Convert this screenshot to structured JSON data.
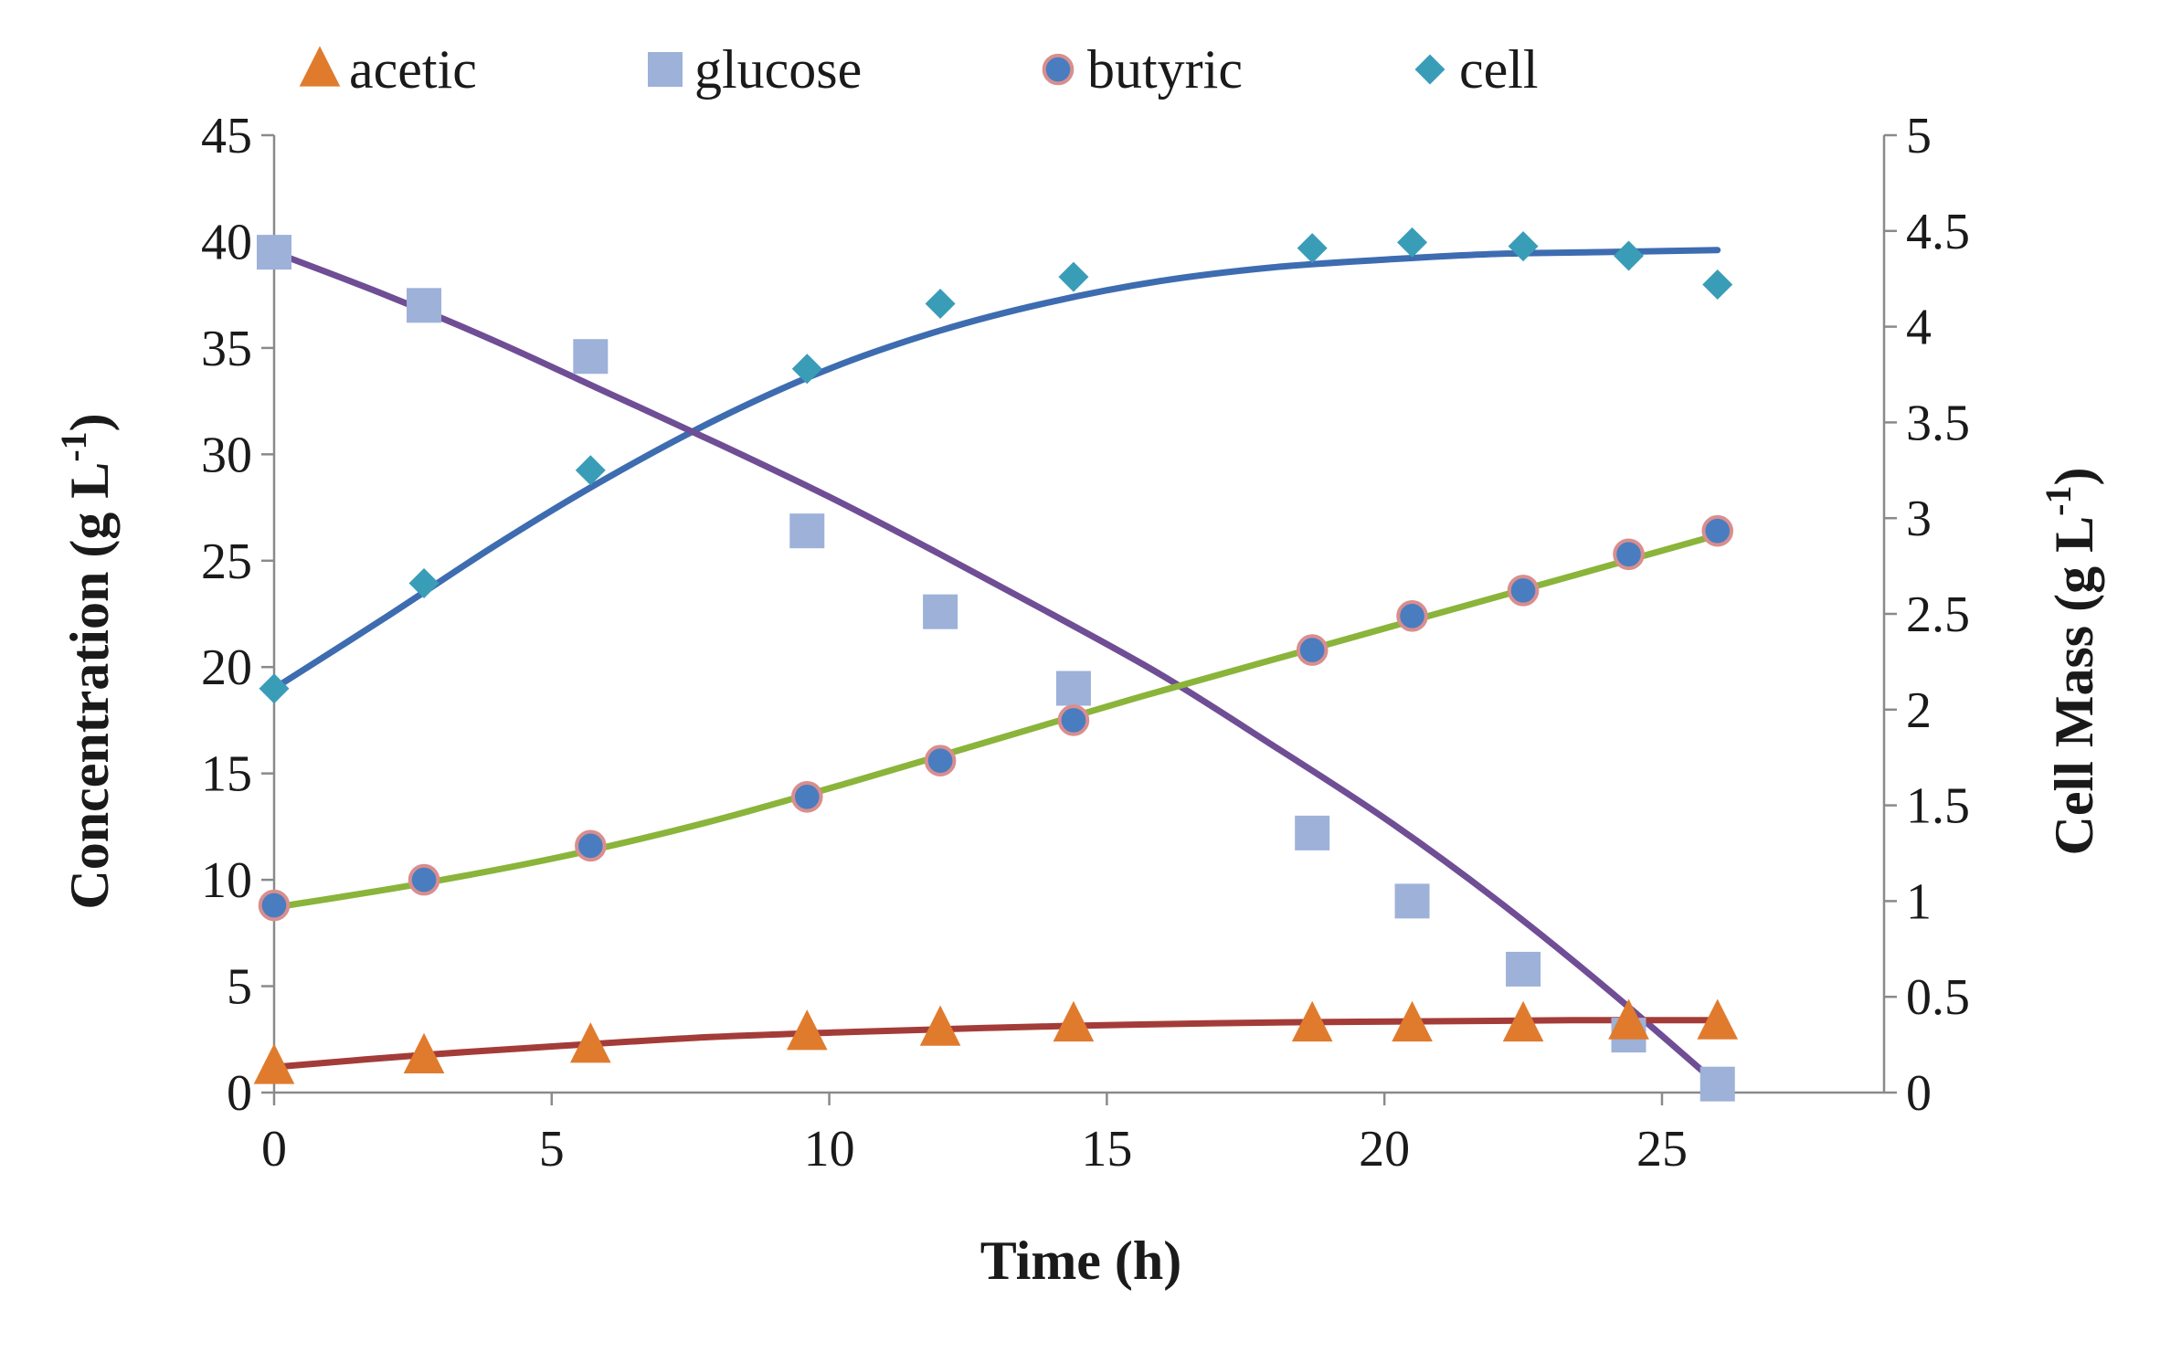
{
  "chart_data": {
    "type": "scatter",
    "title": "",
    "xlabel": "Time (h)",
    "ylabel": {
      "text": "Concentration (g L",
      "sup": "-1",
      "tail": ")"
    },
    "y2label": {
      "text": "Cell Mass (g L",
      "sup": "-1",
      "tail": ")"
    },
    "xlim": [
      0,
      29
    ],
    "ylim": [
      0,
      45
    ],
    "y2lim": [
      0,
      5
    ],
    "xticks": [
      0,
      5,
      10,
      15,
      20,
      25
    ],
    "yticks": [
      0,
      5,
      10,
      15,
      20,
      25,
      30,
      35,
      40,
      45
    ],
    "y2ticks": [
      "0",
      "0.5",
      "1",
      "1.5",
      "2",
      "2.5",
      "3",
      "3.5",
      "4",
      "4.5",
      "5"
    ],
    "grid": false,
    "legend_position": "top",
    "series": [
      {
        "name": "acetic",
        "axis": "left",
        "marker": "triangle",
        "marker_color": "#E07B2E",
        "line_color": "#A33C38",
        "x": [
          0,
          2.7,
          5.7,
          9.6,
          12,
          14.4,
          18.7,
          20.5,
          22.5,
          24.4,
          26
        ],
        "values": [
          1.2,
          1.7,
          2.2,
          2.8,
          3.0,
          3.2,
          3.2,
          3.2,
          3.2,
          3.3,
          3.3
        ],
        "fit_x": [
          0,
          2.6,
          5.2,
          7.8,
          10.4,
          13,
          15.6,
          18.2,
          20.8,
          23.4,
          26
        ],
        "fit_y": [
          1.2,
          1.75,
          2.2,
          2.6,
          2.85,
          3.05,
          3.2,
          3.3,
          3.35,
          3.4,
          3.4
        ]
      },
      {
        "name": "glucose",
        "axis": "left",
        "marker": "square",
        "marker_color": "#9DB1D9",
        "line_color": "#6F4E95",
        "x": [
          0,
          2.7,
          5.7,
          9.6,
          12,
          14.4,
          18.7,
          20.5,
          22.5,
          24.4,
          26
        ],
        "values": [
          39.5,
          37.0,
          34.6,
          26.4,
          22.6,
          19.0,
          12.2,
          9.0,
          5.8,
          2.7,
          0.4
        ],
        "fit_x": [
          0,
          2,
          4,
          6,
          8,
          10,
          12,
          14,
          16,
          18,
          20,
          22,
          24,
          26
        ],
        "fit_y": [
          39.5,
          37.5,
          35.3,
          32.9,
          30.5,
          28.0,
          25.3,
          22.5,
          19.6,
          16.3,
          12.9,
          9.1,
          4.9,
          0.4
        ]
      },
      {
        "name": "butyric",
        "axis": "left",
        "marker": "circle",
        "marker_color": "#4A7CC0",
        "marker_edge": "#D98E8E",
        "line_color": "#8AB43A",
        "x": [
          0,
          2.7,
          5.7,
          9.6,
          12,
          14.4,
          18.7,
          20.5,
          22.5,
          24.4,
          26
        ],
        "values": [
          8.8,
          10.0,
          11.6,
          13.9,
          15.6,
          17.5,
          20.8,
          22.4,
          23.6,
          25.3,
          26.4
        ],
        "fit_x": [
          0,
          2.6,
          5.2,
          7.8,
          10.4,
          13,
          15.6,
          18.2,
          20.8,
          23.4,
          26
        ],
        "fit_y": [
          8.7,
          9.8,
          11.1,
          12.7,
          14.6,
          16.6,
          18.6,
          20.5,
          22.4,
          24.3,
          26.2
        ]
      },
      {
        "name": "cell",
        "axis": "right",
        "marker": "diamond",
        "marker_color": "#3A9DB8",
        "line_color": "#3D6CB0",
        "x": [
          0,
          2.7,
          5.7,
          9.6,
          12,
          14.4,
          18.7,
          20.5,
          22.5,
          24.4,
          26
        ],
        "values": [
          2.11,
          2.66,
          3.25,
          3.78,
          4.12,
          4.26,
          4.41,
          4.44,
          4.42,
          4.37,
          4.22
        ],
        "fit_x": [
          0,
          2,
          4,
          6,
          8,
          10,
          12,
          14,
          16,
          18,
          20,
          22,
          24,
          26
        ],
        "fit_y": [
          2.11,
          2.48,
          2.86,
          3.21,
          3.52,
          3.78,
          3.98,
          4.13,
          4.24,
          4.31,
          4.35,
          4.38,
          4.39,
          4.4
        ]
      }
    ]
  }
}
